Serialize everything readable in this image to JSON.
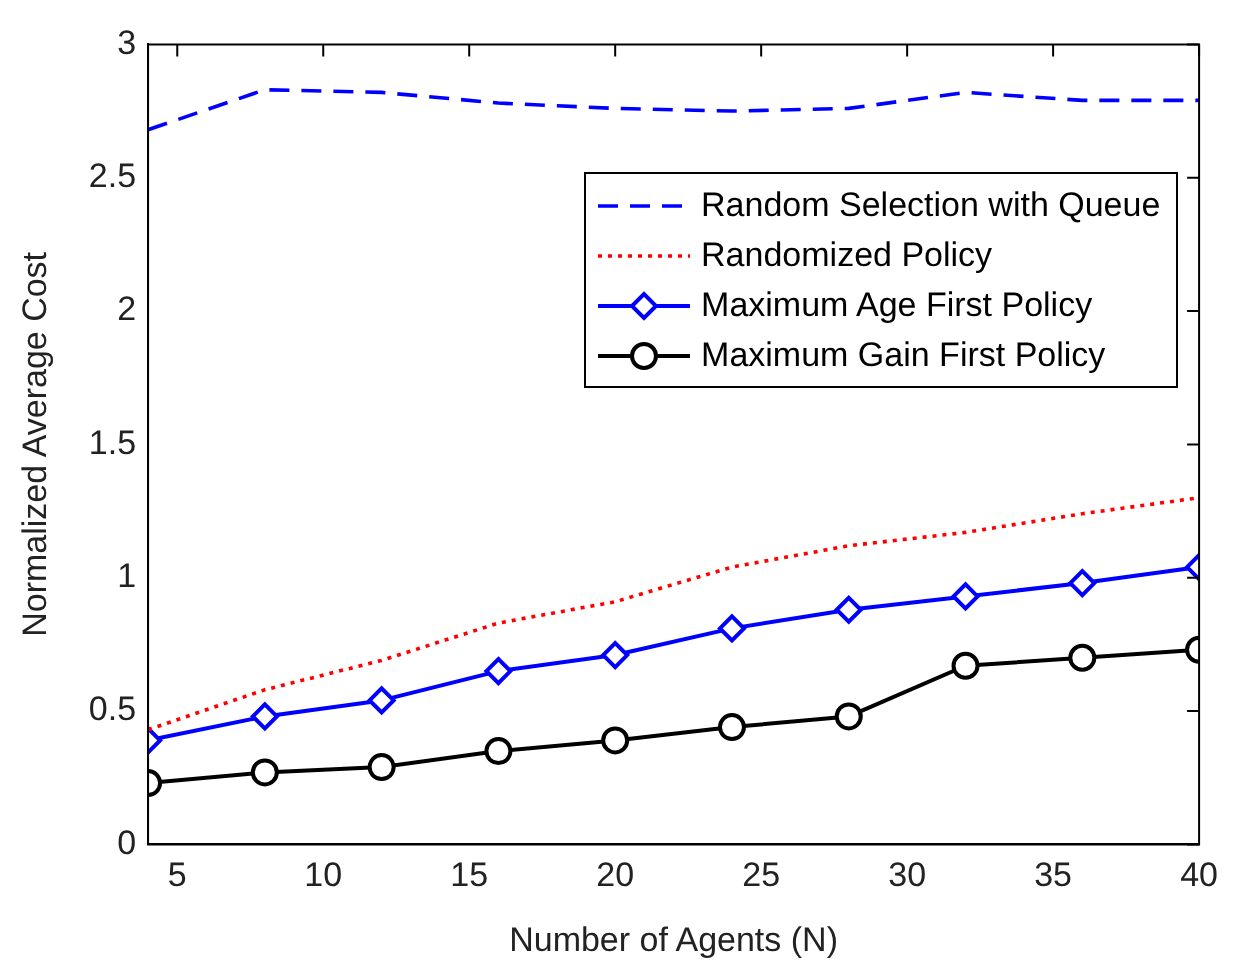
{
  "chart_data": {
    "type": "line",
    "xlabel": "Number of Agents (N)",
    "ylabel": "Normalized Average Cost",
    "x": [
      4,
      8,
      12,
      16,
      20,
      24,
      28,
      32,
      36,
      40
    ],
    "xlim": [
      4,
      40
    ],
    "xticks": [
      5,
      10,
      15,
      20,
      25,
      30,
      35,
      40
    ],
    "ylim": [
      0,
      3
    ],
    "yticks": [
      0,
      0.5,
      1,
      1.5,
      2,
      2.5,
      3
    ],
    "grid": false,
    "legend": "top right",
    "series": [
      {
        "name": "Random Selection with Queue",
        "color": "#0000ff",
        "line_style": "dashed",
        "marker": "none",
        "values": [
          2.68,
          2.83,
          2.82,
          2.78,
          2.76,
          2.75,
          2.76,
          2.82,
          2.79,
          2.79
        ]
      },
      {
        "name": "Randomized Policy",
        "color": "#ff0000",
        "line_style": "dotted",
        "marker": "none",
        "values": [
          0.43,
          0.58,
          0.69,
          0.83,
          0.91,
          1.04,
          1.12,
          1.17,
          1.24,
          1.3
        ]
      },
      {
        "name": "Maximum Age First Policy",
        "color": "#0000ff",
        "line_style": "solid",
        "marker": "diamond",
        "values": [
          0.39,
          0.48,
          0.54,
          0.65,
          0.71,
          0.81,
          0.88,
          0.93,
          0.98,
          1.04
        ]
      },
      {
        "name": "Maximum Gain First Policy",
        "color": "#000000",
        "line_style": "solid",
        "marker": "circle",
        "values": [
          0.23,
          0.27,
          0.29,
          0.35,
          0.39,
          0.44,
          0.48,
          0.67,
          0.7,
          0.73
        ]
      }
    ]
  }
}
